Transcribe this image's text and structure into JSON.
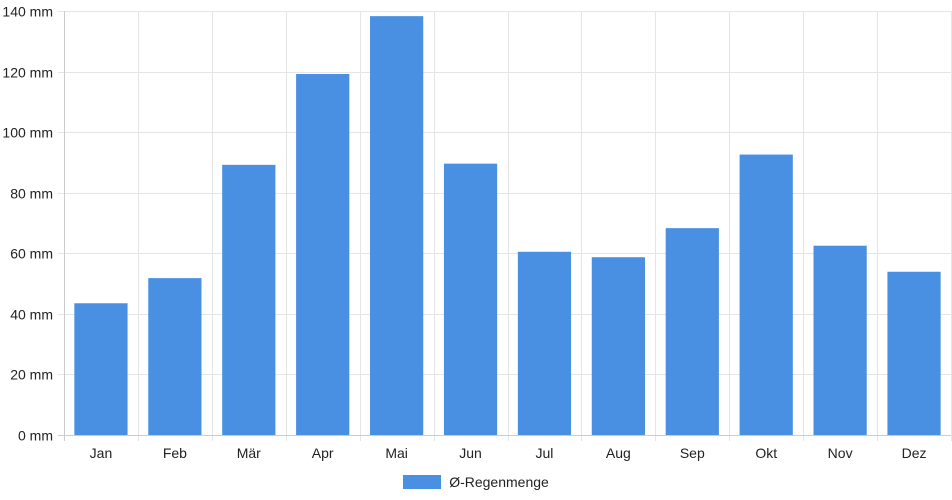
{
  "chart_data": {
    "type": "bar",
    "categories": [
      "Jan",
      "Feb",
      "Mär",
      "Apr",
      "Mai",
      "Jun",
      "Jul",
      "Aug",
      "Sep",
      "Okt",
      "Nov",
      "Dez"
    ],
    "series": [
      {
        "name": "Ø-Regenmenge",
        "values": [
          43.5,
          51.8,
          89.2,
          119.2,
          138.3,
          89.6,
          60.5,
          58.7,
          68.3,
          92.6,
          62.5,
          53.9
        ]
      }
    ],
    "unit": "mm",
    "ylim": [
      0,
      140
    ],
    "yticks": [
      0,
      20,
      40,
      60,
      80,
      100,
      120,
      140
    ],
    "grid": true,
    "legend_position": "bottom",
    "colors": {
      "bar": "#4a90e2",
      "grid": "#e5e5e5",
      "axis": "#cccccc"
    }
  },
  "legend": {
    "label": "Ø-Regenmenge"
  }
}
